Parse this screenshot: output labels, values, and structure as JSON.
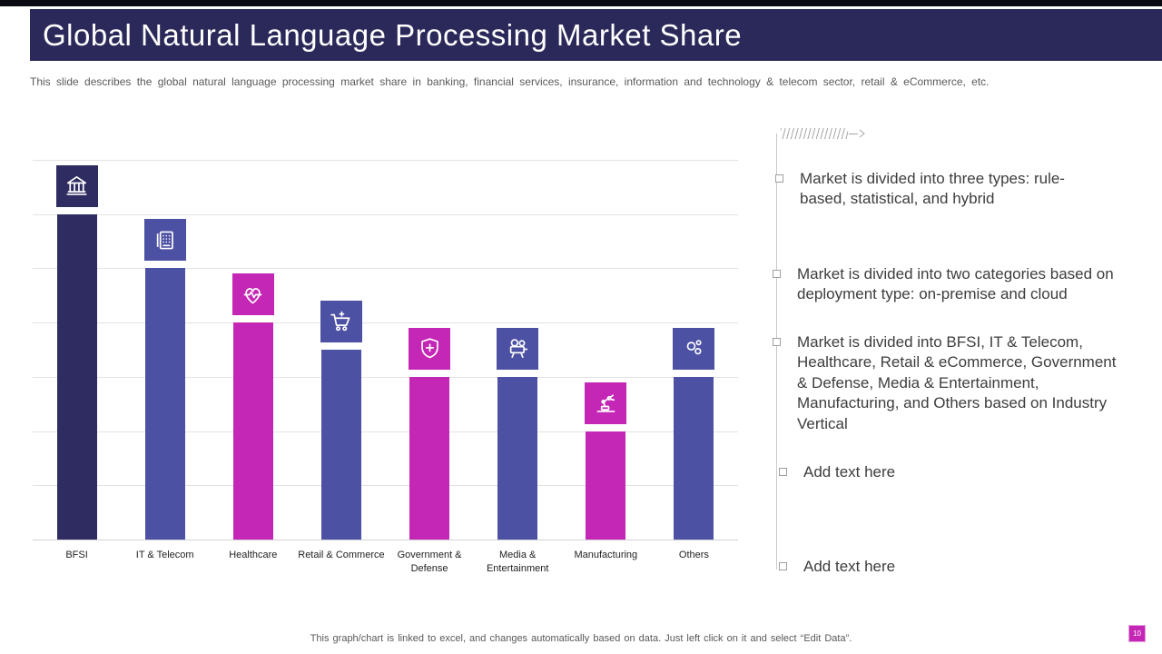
{
  "header": {
    "title": "Global Natural Language Processing Market Share"
  },
  "subtitle": "This slide describes the global natural language processing market share in banking, financial services,  insurance, information  and technology & telecom sector, retail & eCommerce,  etc.",
  "chart_data": {
    "type": "bar",
    "title": "",
    "xlabel": "",
    "ylabel": "",
    "categories": [
      "BFSI",
      "IT & Telecom",
      "Healthcare",
      "Retail & Commerce",
      "Government & Defense",
      "Media & Entertainment",
      "Manufacturing",
      "Others"
    ],
    "values": [
      30,
      25,
      20,
      17.5,
      15,
      15,
      10,
      15
    ],
    "ylim": [
      0,
      35
    ],
    "grid": true,
    "gridline_count": 8,
    "legend": "none",
    "bar_colors": [
      "#2e2c60",
      "#4d51a3",
      "#c427b5",
      "#4d51a3",
      "#c427b5",
      "#4d51a3",
      "#c427b5",
      "#4d51a3"
    ],
    "icons": [
      "bank-icon",
      "fax-icon",
      "heart-pulse-icon",
      "cart-icon",
      "shield-plus-icon",
      "projector-icon",
      "robot-arm-icon",
      "circles-icon"
    ]
  },
  "bullets": [
    "Market is divided into three types: rule-based, statistical, and hybrid",
    "Market is divided into two categories based on deployment type: on-premise and cloud",
    "Market is divided into BFSI, IT & Telecom, Healthcare, Retail & eCommerce, Government & Defense, Media & Entertainment, Manufacturing, and Others based on Industry Vertical",
    "Add text here",
    "Add text here"
  ],
  "footer": {
    "note": "This graph/chart is linked to excel,  and changes automatically based on data. Just left click on it and select “Edit Data”."
  },
  "page": {
    "number": "10"
  },
  "colors": {
    "header_bg": "#2b295a",
    "navy": "#2e2c60",
    "indigo": "#4d51a3",
    "magenta": "#c427b5"
  }
}
